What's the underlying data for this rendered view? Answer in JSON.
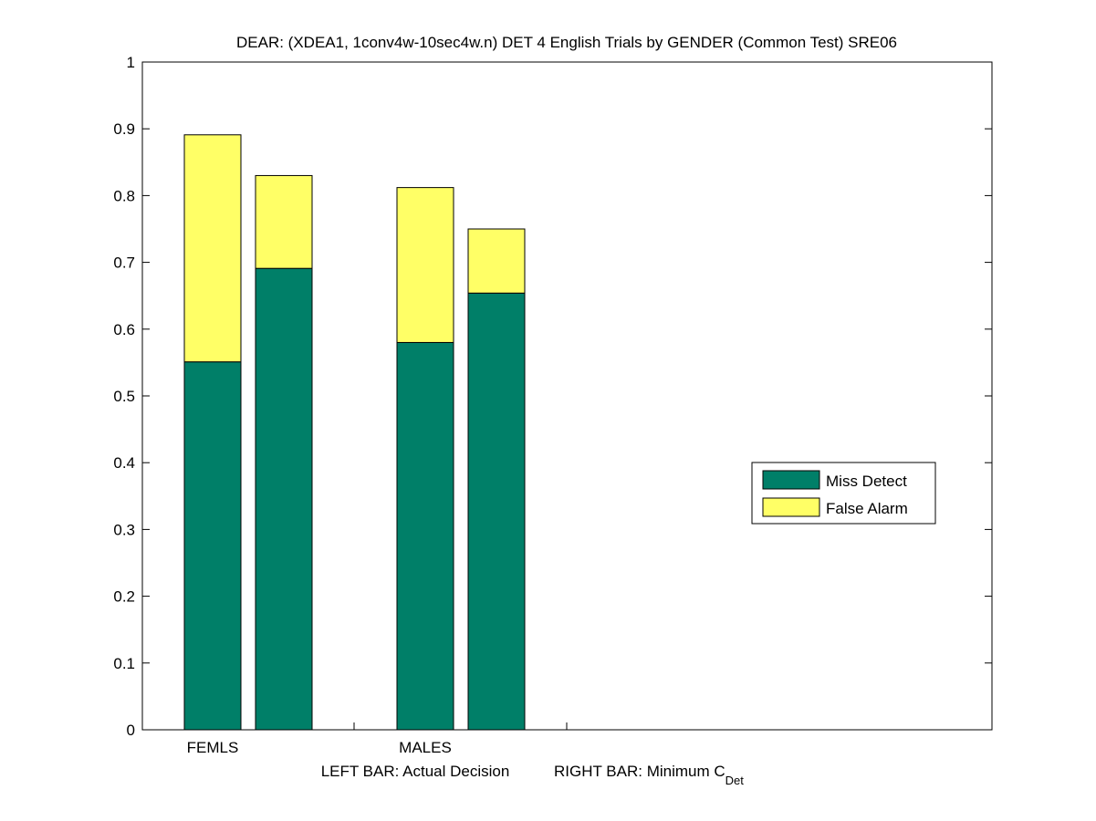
{
  "chart_data": {
    "type": "bar",
    "stacked": true,
    "title": "DEAR: (XDEA1, 1conv4w-10sec4w.n) DET 4 English Trials by GENDER (Common Test) SRE06",
    "xlabel_left": "LEFT BAR: Actual Decision",
    "xlabel_right": "RIGHT BAR: Minimum C",
    "xlabel_right_sub": "Det",
    "categories": [
      "FEMLS",
      "MALES"
    ],
    "bars_per_category": [
      "Actual Decision",
      "Minimum CDet"
    ],
    "series": [
      {
        "name": "Miss Detect",
        "color": "#007f68",
        "values": [
          [
            0.551,
            0.691
          ],
          [
            0.58,
            0.654
          ]
        ]
      },
      {
        "name": "False Alarm",
        "color": "#ffff66",
        "values": [
          [
            0.34,
            0.139
          ],
          [
            0.232,
            0.096
          ]
        ]
      }
    ],
    "ylim": [
      0,
      1
    ],
    "yticks": [
      "0",
      "0.1",
      "0.2",
      "0.3",
      "0.4",
      "0.5",
      "0.6",
      "0.7",
      "0.8",
      "0.9",
      "1"
    ],
    "grid": false,
    "legend_position": "right"
  }
}
